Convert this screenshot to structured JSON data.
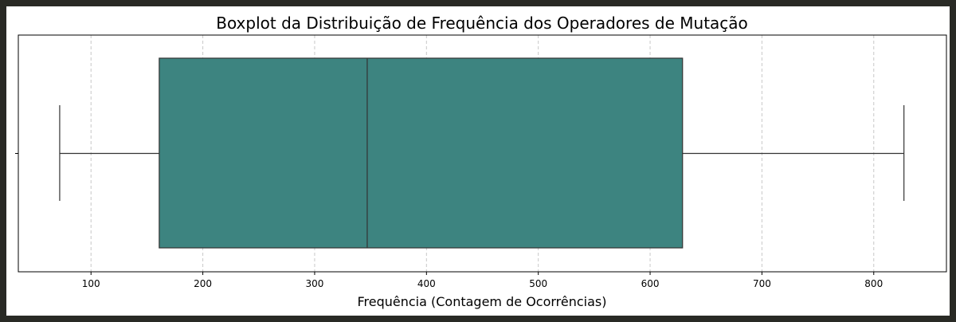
{
  "chart_data": {
    "type": "boxplot",
    "title": "Boxplot da Distribuição de Frequência dos Operadores de Mutação",
    "xlabel": "Frequência (Contagem de Ocorrências)",
    "ylabel": "",
    "xlim": [
      35,
      865
    ],
    "xticks": [
      100,
      200,
      300,
      400,
      500,
      600,
      700,
      800
    ],
    "grid": "x-dashed",
    "box": {
      "whisker_low": 72,
      "q1": 161,
      "median": 347,
      "q3": 629,
      "whisker_high": 827
    },
    "colors": {
      "box_fill": "#3d8480",
      "line": "#333333",
      "grid": "#c8c8c8"
    }
  }
}
